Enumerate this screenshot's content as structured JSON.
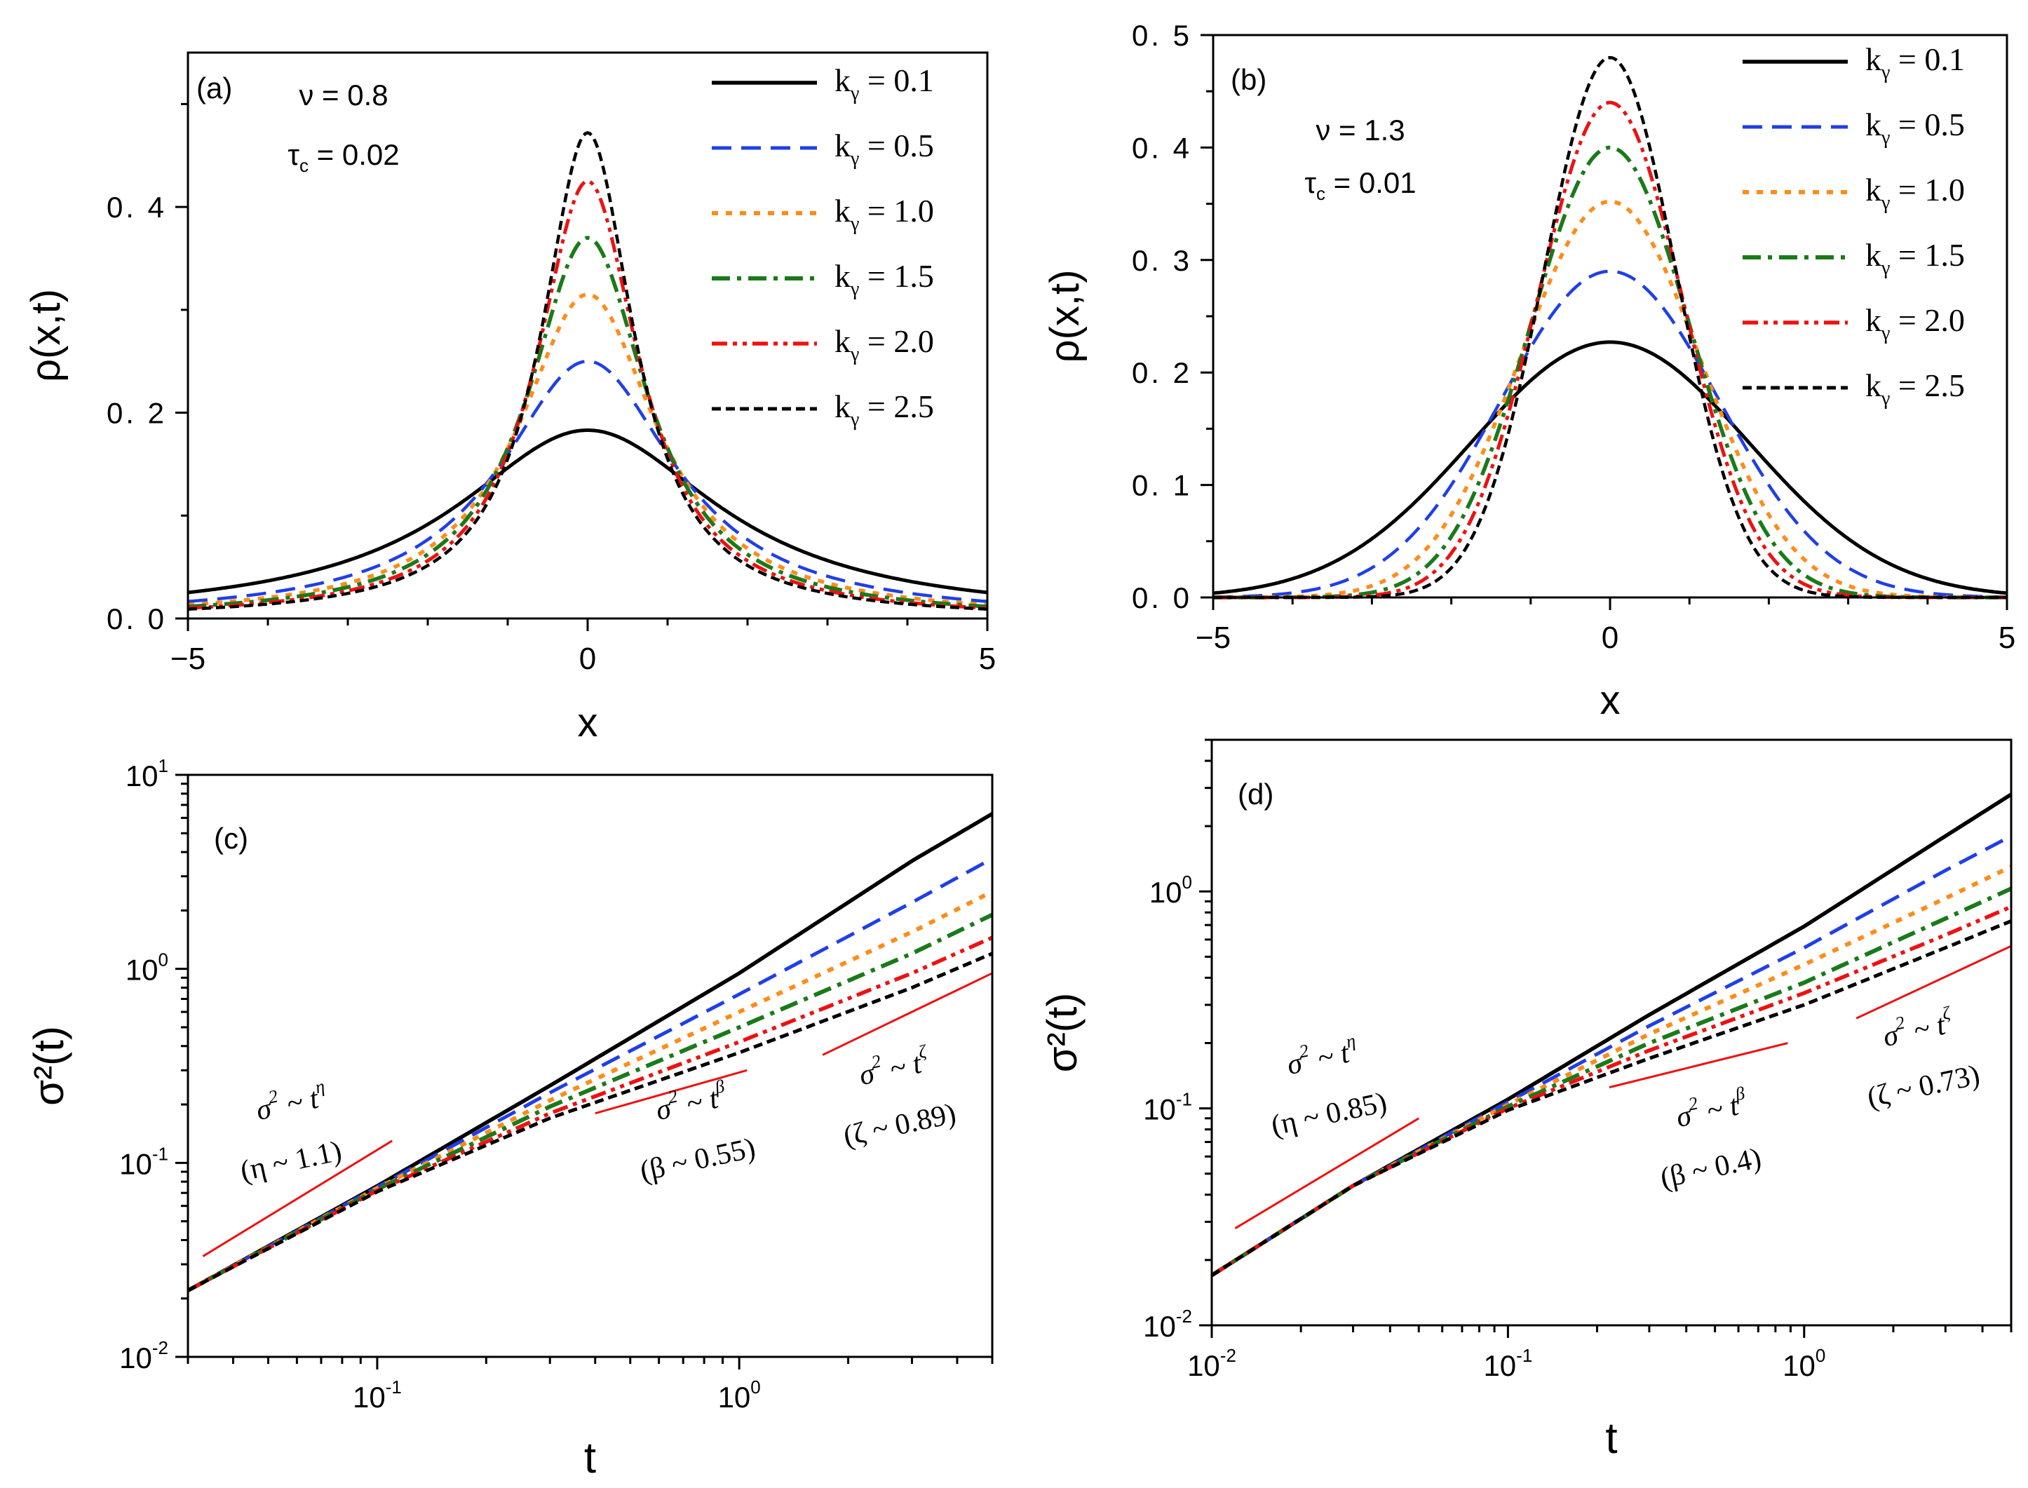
{
  "figure": {
    "legend": [
      {
        "label": "k",
        "sub": "γ",
        "value": "= 0.1",
        "color": "#000000",
        "dash": "solid"
      },
      {
        "label": "k",
        "sub": "γ",
        "value": "= 0.5",
        "color": "#1f3fe8",
        "dash": "dash"
      },
      {
        "label": "k",
        "sub": "γ",
        "value": "= 1.0",
        "color": "#ff8c1a",
        "dash": "dot"
      },
      {
        "label": "k",
        "sub": "γ",
        "value": "= 1.5",
        "color": "#1a7a1a",
        "dash": "dashdot"
      },
      {
        "label": "k",
        "sub": "γ",
        "value": "= 2.0",
        "color": "#ee1111",
        "dash": "dashdotdot"
      },
      {
        "label": "k",
        "sub": "γ",
        "value": "= 2.5",
        "color": "#000000",
        "dash": "shortdash"
      }
    ],
    "trend_color": "#ee1111"
  },
  "chart_data": [
    {
      "type": "line",
      "panel_label": "(a)",
      "params": [
        "ν = 0.8",
        "τ",
        "c",
        "= 0.02"
      ],
      "xlabel": "x",
      "ylabel": "ρ(x,t)",
      "xlim": [
        -5,
        5
      ],
      "ylim": [
        0,
        0.55
      ],
      "xticks": [
        "−5",
        "0",
        "5"
      ],
      "yticks": [
        "0. 0",
        "0. 2",
        "0. 4"
      ],
      "profile": "lorentz",
      "series": [
        {
          "name": "k_γ = 0.1",
          "peak": 0.183,
          "width": 2.0
        },
        {
          "name": "k_γ = 0.5",
          "peak": 0.25,
          "width": 1.33
        },
        {
          "name": "k_γ = 1.0",
          "peak": 0.315,
          "width": 1.05
        },
        {
          "name": "k_γ = 1.5",
          "peak": 0.37,
          "width": 0.9
        },
        {
          "name": "k_γ = 2.0",
          "peak": 0.425,
          "width": 0.78
        },
        {
          "name": "k_γ = 2.5",
          "peak": 0.472,
          "width": 0.7
        }
      ]
    },
    {
      "type": "line",
      "panel_label": "(b)",
      "params": [
        "ν = 1.3",
        "τ",
        "c",
        "= 0.01"
      ],
      "xlabel": "x",
      "ylabel": "ρ(x,t)",
      "xlim": [
        -5,
        5
      ],
      "ylim": [
        0,
        0.5
      ],
      "xticks": [
        "−5",
        "0",
        "5"
      ],
      "yticks": [
        "0. 0",
        "0. 1",
        "0. 2",
        "0. 3",
        "0. 4",
        "0. 5"
      ],
      "profile": "gauss",
      "series": [
        {
          "name": "k_γ = 0.1",
          "peak": 0.227,
          "width": 1.75
        },
        {
          "name": "k_γ = 0.5",
          "peak": 0.29,
          "width": 1.37
        },
        {
          "name": "k_γ = 1.0",
          "peak": 0.352,
          "width": 1.13
        },
        {
          "name": "k_γ = 1.5",
          "peak": 0.4,
          "width": 1.0
        },
        {
          "name": "k_γ = 2.0",
          "peak": 0.44,
          "width": 0.91
        },
        {
          "name": "k_γ = 2.5",
          "peak": 0.48,
          "width": 0.83
        }
      ]
    },
    {
      "type": "line",
      "scale": "log-log",
      "panel_label": "(c)",
      "xlabel": "t",
      "ylabel": "σ²(t)",
      "xlim": [
        0.03,
        5
      ],
      "ylim": [
        0.01,
        10
      ],
      "xticks": [
        {
          "value": 0.1,
          "base": "10",
          "exp": "-1"
        },
        {
          "value": 1,
          "base": "10",
          "exp": "0"
        }
      ],
      "yticks": [
        {
          "value": 0.01,
          "base": "10",
          "exp": "-2"
        },
        {
          "value": 0.1,
          "base": "10",
          "exp": "-1"
        },
        {
          "value": 1,
          "base": "10",
          "exp": "0"
        },
        {
          "value": 10,
          "base": "10",
          "exp": "1"
        }
      ],
      "series": [
        {
          "name": "k_γ = 0.1",
          "x": [
            0.03,
            0.1,
            0.3,
            1,
            3,
            5
          ],
          "y": [
            0.022,
            0.076,
            0.25,
            0.95,
            3.6,
            6.3
          ]
        },
        {
          "name": "k_γ = 0.5",
          "x": [
            0.03,
            0.1,
            0.3,
            1,
            3,
            5
          ],
          "y": [
            0.022,
            0.075,
            0.23,
            0.74,
            2.2,
            3.7
          ]
        },
        {
          "name": "k_γ = 1.0",
          "x": [
            0.03,
            0.1,
            0.3,
            1,
            3,
            5
          ],
          "y": [
            0.022,
            0.074,
            0.21,
            0.6,
            1.55,
            2.5
          ]
        },
        {
          "name": "k_γ = 1.5",
          "x": [
            0.03,
            0.1,
            0.3,
            1,
            3,
            5
          ],
          "y": [
            0.022,
            0.073,
            0.195,
            0.5,
            1.2,
            1.9
          ]
        },
        {
          "name": "k_γ = 2.0",
          "x": [
            0.03,
            0.1,
            0.3,
            1,
            3,
            5
          ],
          "y": [
            0.022,
            0.072,
            0.18,
            0.42,
            0.95,
            1.45
          ]
        },
        {
          "name": "k_γ = 2.5",
          "x": [
            0.03,
            0.1,
            0.3,
            1,
            3,
            5
          ],
          "y": [
            0.022,
            0.071,
            0.17,
            0.37,
            0.8,
            1.2
          ]
        }
      ],
      "trends": [
        {
          "x1": 0.033,
          "y1": 0.033,
          "x2": 0.11,
          "y2": 0.13
        },
        {
          "x1": 0.4,
          "y1": 0.18,
          "x2": 1.05,
          "y2": 0.3
        },
        {
          "x1": 1.7,
          "y1": 0.36,
          "x2": 5.0,
          "y2": 0.95
        }
      ],
      "annotations": [
        {
          "lines": [
            [
              "σ",
              "2",
              " ~ t",
              "η"
            ],
            [
              "(η ~ 1.1)"
            ]
          ]
        },
        {
          "lines": [
            [
              "σ",
              "2",
              " ~ t",
              "β"
            ],
            [
              "(β ~ 0.55)"
            ]
          ]
        },
        {
          "lines": [
            [
              "σ",
              "2",
              " ~ t",
              "ζ"
            ],
            [
              "(ζ ~ 0.89)"
            ]
          ]
        }
      ]
    },
    {
      "type": "line",
      "scale": "log-log",
      "panel_label": "(d)",
      "xlabel": "t",
      "ylabel": "σ²(t)",
      "xlim": [
        0.01,
        5
      ],
      "ylim": [
        0.01,
        5
      ],
      "xticks": [
        {
          "value": 0.01,
          "base": "10",
          "exp": "-2"
        },
        {
          "value": 0.1,
          "base": "10",
          "exp": "-1"
        },
        {
          "value": 1,
          "base": "10",
          "exp": "0"
        }
      ],
      "yticks": [
        {
          "value": 0.01,
          "base": "10",
          "exp": "-2"
        },
        {
          "value": 0.1,
          "base": "10",
          "exp": "-1"
        },
        {
          "value": 1,
          "base": "10",
          "exp": "0"
        }
      ],
      "series": [
        {
          "name": "k_γ = 0.1",
          "x": [
            0.01,
            0.03,
            0.1,
            0.3,
            1,
            3,
            5
          ],
          "y": [
            0.017,
            0.044,
            0.11,
            0.27,
            0.69,
            1.8,
            2.8
          ]
        },
        {
          "name": "k_γ = 0.5",
          "x": [
            0.01,
            0.03,
            0.1,
            0.3,
            1,
            3,
            5
          ],
          "y": [
            0.017,
            0.044,
            0.107,
            0.24,
            0.55,
            1.25,
            1.8
          ]
        },
        {
          "name": "k_γ = 1.0",
          "x": [
            0.01,
            0.03,
            0.1,
            0.3,
            1,
            3,
            5
          ],
          "y": [
            0.017,
            0.044,
            0.104,
            0.22,
            0.46,
            0.93,
            1.3
          ]
        },
        {
          "name": "k_γ = 1.5",
          "x": [
            0.01,
            0.03,
            0.1,
            0.3,
            1,
            3,
            5
          ],
          "y": [
            0.017,
            0.044,
            0.102,
            0.2,
            0.38,
            0.75,
            1.03
          ]
        },
        {
          "name": "k_γ = 2.0",
          "x": [
            0.01,
            0.03,
            0.1,
            0.3,
            1,
            3,
            5
          ],
          "y": [
            0.017,
            0.044,
            0.1,
            0.185,
            0.34,
            0.63,
            0.85
          ]
        },
        {
          "name": "k_γ = 2.5",
          "x": [
            0.01,
            0.03,
            0.1,
            0.3,
            1,
            3,
            5
          ],
          "y": [
            0.017,
            0.044,
            0.098,
            0.17,
            0.3,
            0.55,
            0.73
          ]
        }
      ],
      "trends": [
        {
          "x1": 0.012,
          "y1": 0.028,
          "x2": 0.05,
          "y2": 0.09
        },
        {
          "x1": 0.22,
          "y1": 0.125,
          "x2": 0.88,
          "y2": 0.2
        },
        {
          "x1": 1.5,
          "y1": 0.26,
          "x2": 5.0,
          "y2": 0.56
        }
      ],
      "annotations": [
        {
          "lines": [
            [
              "σ",
              "2",
              " ~ t",
              "η"
            ],
            [
              "(η ~ 0.85)"
            ]
          ]
        },
        {
          "lines": [
            [
              "σ",
              "2",
              " ~ t",
              "β"
            ],
            [
              "(β ~ 0.4)"
            ]
          ]
        },
        {
          "lines": [
            [
              "σ",
              "2",
              " ~ t",
              "ζ"
            ],
            [
              "(ζ ~ 0.73)"
            ]
          ]
        }
      ]
    }
  ]
}
